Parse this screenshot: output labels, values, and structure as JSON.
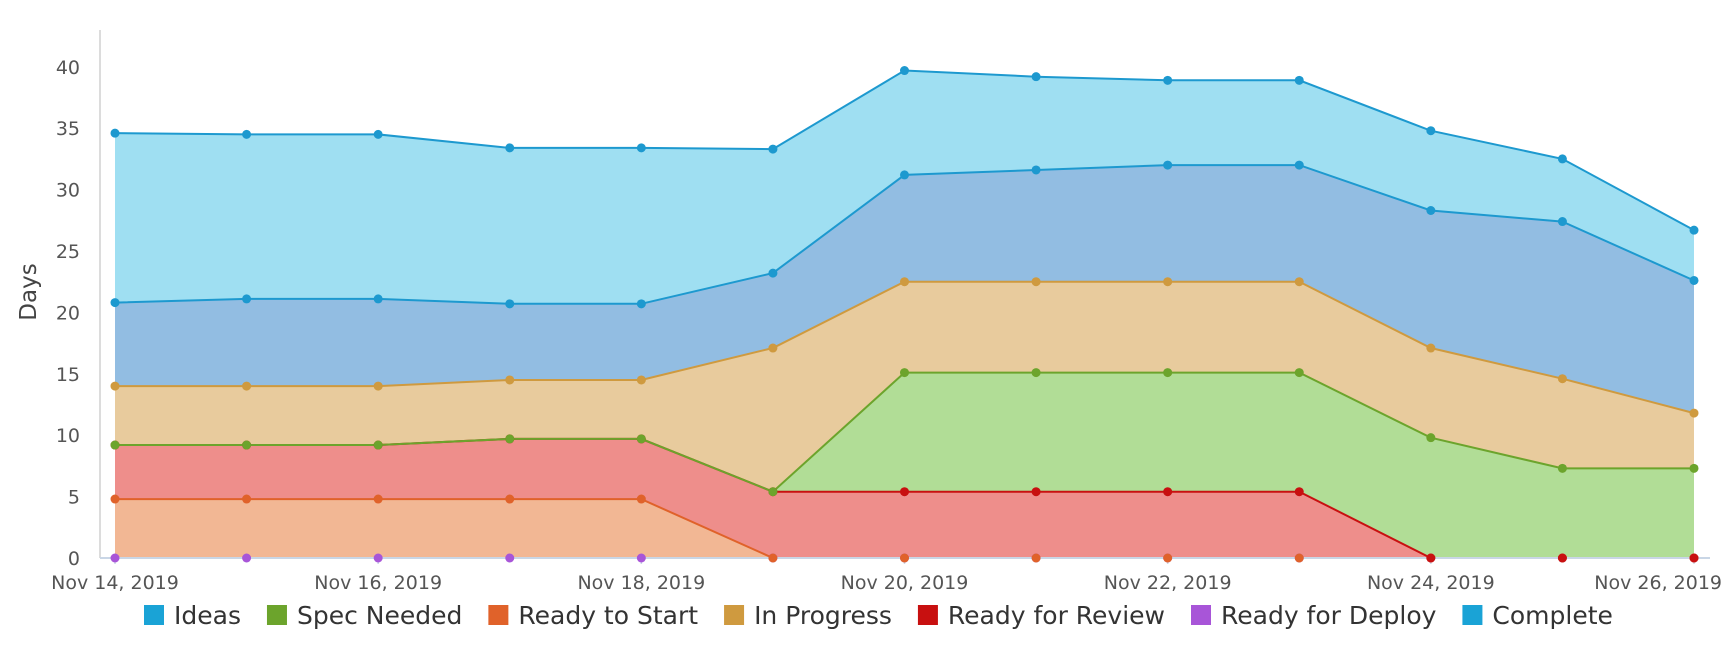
{
  "chart_data": {
    "type": "area",
    "stacked": true,
    "ylabel": "Days",
    "ylim": [
      0,
      43
    ],
    "yticks": [
      0,
      5,
      10,
      15,
      20,
      25,
      30,
      35,
      40
    ],
    "x_start": "2019-11-14",
    "x_end": "2019-11-26",
    "xtick_labels": [
      "Nov 14, 2019",
      "Nov 16, 2019",
      "Nov 18, 2019",
      "Nov 20, 2019",
      "Nov 22, 2019",
      "Nov 24, 2019",
      "Nov 26, 2019"
    ],
    "x": [
      "2019-11-14",
      "2019-11-15",
      "2019-11-16",
      "2019-11-17",
      "2019-11-18",
      "2019-11-19",
      "2019-11-20",
      "2019-11-21",
      "2019-11-22",
      "2019-11-23",
      "2019-11-24",
      "2019-11-25",
      "2019-11-26"
    ],
    "legend_position": "bottom",
    "grid": false,
    "series": [
      {
        "name": "Ready for Deploy",
        "color": "#a855d8",
        "fill": "#d8b0ef",
        "values": [
          0,
          0,
          0,
          0,
          0,
          0,
          0,
          0,
          0,
          0,
          0,
          0,
          0
        ]
      },
      {
        "name": "Ready to Start",
        "color": "#e0622a",
        "fill": "#f2b794",
        "values": [
          4.8,
          4.8,
          4.8,
          4.8,
          4.8,
          0,
          0,
          0,
          0,
          0,
          0,
          0,
          0
        ]
      },
      {
        "name": "Ready for Review",
        "color": "#c81010",
        "fill": "#ee8e8b",
        "values": [
          4.4,
          4.4,
          4.4,
          4.9,
          4.9,
          5.4,
          5.4,
          5.4,
          5.4,
          5.4,
          0,
          0,
          0
        ]
      },
      {
        "name": "Spec Needed",
        "color": "#6ca42c",
        "fill": "#b1dd96",
        "values": [
          0,
          0,
          0,
          0,
          0,
          0,
          9.7,
          9.7,
          9.7,
          9.7,
          9.8,
          7.3,
          7.3
        ]
      },
      {
        "name": "In Progress",
        "color": "#cf9a3f",
        "fill": "#e8cb9d",
        "values": [
          4.8,
          4.8,
          4.8,
          4.8,
          4.8,
          11.7,
          7.4,
          7.4,
          7.4,
          7.4,
          7.3,
          7.3,
          4.5
        ]
      },
      {
        "name": "Complete",
        "color": "#1d99cf",
        "fill": "#92bde2",
        "values": [
          6.8,
          7.1,
          7.1,
          6.2,
          6.2,
          6.1,
          8.7,
          9.1,
          9.5,
          9.5,
          11.2,
          12.8,
          10.8
        ]
      },
      {
        "name": "Ideas",
        "color": "#1d99cf",
        "fill": "#9fdff2",
        "values": [
          13.8,
          13.4,
          13.4,
          12.7,
          12.7,
          10.1,
          8.5,
          7.6,
          6.9,
          6.9,
          6.5,
          5.1,
          4.1
        ]
      }
    ],
    "legend": [
      {
        "name": "Ideas",
        "color": "#1aa3d6"
      },
      {
        "name": "Spec Needed",
        "color": "#6ca42c"
      },
      {
        "name": "Ready to Start",
        "color": "#e0622a"
      },
      {
        "name": "In Progress",
        "color": "#cf9a3f"
      },
      {
        "name": "Ready for Review",
        "color": "#c81010"
      },
      {
        "name": "Ready for Deploy",
        "color": "#a855d8"
      },
      {
        "name": "Complete",
        "color": "#1aa3d6"
      }
    ]
  }
}
